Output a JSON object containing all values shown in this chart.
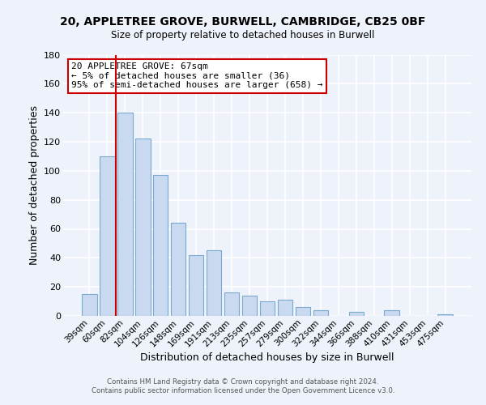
{
  "title_line1": "20, APPLETREE GROVE, BURWELL, CAMBRIDGE, CB25 0BF",
  "title_line2": "Size of property relative to detached houses in Burwell",
  "xlabel": "Distribution of detached houses by size in Burwell",
  "ylabel": "Number of detached properties",
  "bar_labels": [
    "39sqm",
    "60sqm",
    "82sqm",
    "104sqm",
    "126sqm",
    "148sqm",
    "169sqm",
    "191sqm",
    "213sqm",
    "235sqm",
    "257sqm",
    "279sqm",
    "300sqm",
    "322sqm",
    "344sqm",
    "366sqm",
    "388sqm",
    "410sqm",
    "431sqm",
    "453sqm",
    "475sqm"
  ],
  "bar_values": [
    15,
    110,
    140,
    122,
    97,
    64,
    42,
    45,
    16,
    14,
    10,
    11,
    6,
    4,
    0,
    3,
    0,
    4,
    0,
    0,
    1
  ],
  "bar_color": "#c8d9f0",
  "bar_edge_color": "#7aaad0",
  "vline_color": "#cc0000",
  "ylim": [
    0,
    180
  ],
  "yticks": [
    0,
    20,
    40,
    60,
    80,
    100,
    120,
    140,
    160,
    180
  ],
  "annotation_text": "20 APPLETREE GROVE: 67sqm\n← 5% of detached houses are smaller (36)\n95% of semi-detached houses are larger (658) →",
  "annotation_box_color": "#ffffff",
  "annotation_box_edge": "#cc0000",
  "footer_line1": "Contains HM Land Registry data © Crown copyright and database right 2024.",
  "footer_line2": "Contains public sector information licensed under the Open Government Licence v3.0.",
  "background_color": "#eef2fa"
}
